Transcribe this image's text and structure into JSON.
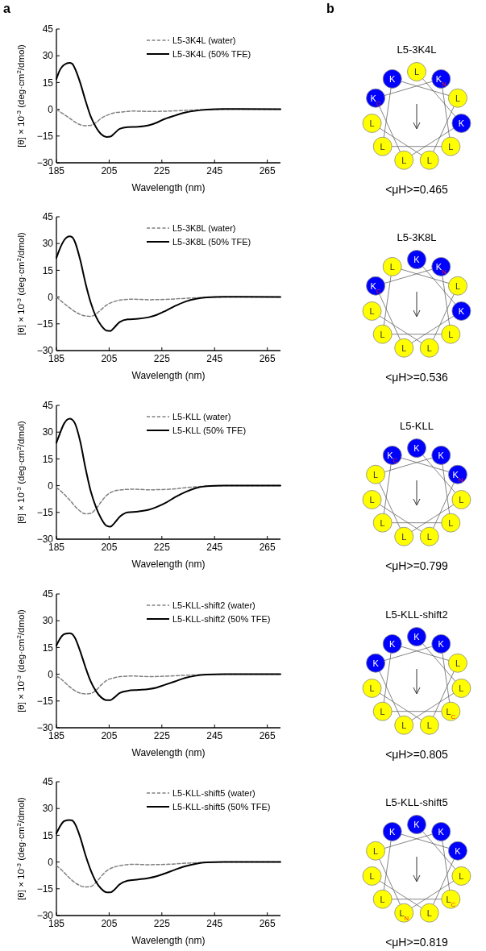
{
  "chart_data": [
    {
      "type": "line",
      "xlabel": "Wavelength (nm)",
      "ylabel": "[θ] × 10$^{-3}$ (deg·cm$^{2}$/dmol)",
      "xlim": [
        185,
        270
      ],
      "xticks": [
        185,
        205,
        225,
        245,
        265
      ],
      "ylim": [
        -30,
        45
      ],
      "yticks": [
        -30,
        -15,
        0,
        15,
        30,
        45
      ],
      "legend": "top right",
      "grid": false,
      "annotations": [
        "a"
      ],
      "series": [
        {
          "name": "L5-3K4L (water)",
          "color": "#808080",
          "line_style": "dashed",
          "x": [
            185,
            187,
            190,
            193,
            196,
            198,
            200,
            202,
            204,
            207,
            210,
            214,
            220,
            228,
            235,
            242,
            250,
            270
          ],
          "values": [
            0,
            -2,
            -5,
            -8,
            -9.2,
            -9,
            -7.5,
            -5,
            -3.5,
            -2,
            -1.5,
            -1,
            -1.2,
            -1,
            -0.5,
            -0.2,
            0,
            0
          ]
        },
        {
          "name": "L5-3K4L (50% TFE)",
          "color": "#000000",
          "line_style": "solid",
          "x": [
            185,
            186,
            188,
            190,
            191,
            192,
            194,
            196,
            198,
            200,
            202,
            204,
            205.5,
            207,
            209,
            212,
            216,
            220,
            223,
            226,
            230,
            234,
            238,
            242,
            248,
            255,
            270
          ],
          "values": [
            17,
            21,
            25,
            26,
            25.5,
            23,
            15,
            5,
            -4,
            -10,
            -14,
            -15.5,
            -15.3,
            -13.5,
            -11,
            -10,
            -9.8,
            -9,
            -7.5,
            -5.5,
            -3.5,
            -1.8,
            -0.8,
            -0.2,
            0.2,
            0.2,
            0
          ]
        }
      ]
    },
    {
      "type": "line",
      "xlabel": "Wavelength (nm)",
      "ylabel": "[θ] × 10$^{-3}$ (deg·cm$^{2}$/dmol)",
      "xlim": [
        185,
        270
      ],
      "xticks": [
        185,
        205,
        225,
        245,
        265
      ],
      "ylim": [
        -30,
        45
      ],
      "yticks": [
        -30,
        -15,
        0,
        15,
        30,
        45
      ],
      "legend": "top right",
      "grid": false,
      "series": [
        {
          "name": "L5-3K8L (water)",
          "color": "#808080",
          "line_style": "dashed",
          "x": [
            185,
            187,
            190,
            193,
            196,
            198,
            200,
            202,
            204,
            207,
            210,
            214,
            220,
            228,
            235,
            242,
            250,
            270
          ],
          "values": [
            0,
            -2.5,
            -6,
            -9,
            -10.6,
            -10.8,
            -9.5,
            -7,
            -4.5,
            -2.5,
            -1.5,
            -1.2,
            -1.5,
            -1.2,
            -0.6,
            -0.2,
            0,
            0
          ]
        },
        {
          "name": "L5-3K8L (50% TFE)",
          "color": "#000000",
          "line_style": "solid",
          "x": [
            185,
            186,
            188,
            190,
            191,
            192,
            194,
            196,
            198,
            200,
            202,
            204,
            205.5,
            207,
            209,
            212,
            216,
            220,
            223,
            226,
            230,
            234,
            238,
            242,
            248,
            255,
            270
          ],
          "values": [
            22,
            26,
            32,
            34,
            33.5,
            31,
            21,
            8,
            -3,
            -11,
            -16,
            -18.8,
            -19,
            -17,
            -14,
            -12.5,
            -12.2,
            -11.3,
            -10,
            -8,
            -5,
            -2.5,
            -1,
            -0.2,
            0.2,
            0.2,
            0
          ]
        }
      ]
    },
    {
      "type": "line",
      "xlabel": "Wavelength (nm)",
      "ylabel": "[θ] × 10$^{-3}$ (deg·cm$^{2}$/dmol)",
      "xlim": [
        185,
        270
      ],
      "xticks": [
        185,
        205,
        225,
        245,
        265
      ],
      "ylim": [
        -30,
        45
      ],
      "yticks": [
        -30,
        -15,
        0,
        15,
        30,
        45
      ],
      "legend": "top right",
      "grid": false,
      "series": [
        {
          "name": "L5-KLL (water)",
          "color": "#808080",
          "line_style": "dashed",
          "x": [
            185,
            187,
            190,
            193,
            196,
            198,
            200,
            202,
            204,
            207,
            210,
            214,
            220,
            228,
            235,
            242,
            250,
            270
          ],
          "values": [
            -1,
            -3.5,
            -8,
            -13,
            -15.8,
            -15.5,
            -13,
            -9,
            -5.5,
            -3,
            -2.3,
            -2,
            -2.3,
            -2,
            -1,
            -0.3,
            0,
            0
          ]
        },
        {
          "name": "L5-KLL (50% TFE)",
          "color": "#000000",
          "line_style": "solid",
          "x": [
            185,
            186,
            188,
            190,
            191,
            192,
            194,
            196,
            198,
            200,
            202,
            204,
            205.5,
            207,
            209,
            212,
            216,
            220,
            223,
            226,
            230,
            234,
            238,
            242,
            248,
            255,
            270
          ],
          "values": [
            24,
            28,
            35,
            37.5,
            37,
            35,
            25,
            10,
            -3,
            -12,
            -18.5,
            -22.5,
            -23,
            -21,
            -17.5,
            -15,
            -14.5,
            -13.5,
            -12,
            -10,
            -6.5,
            -3.5,
            -1.3,
            -0.3,
            0.1,
            0.1,
            0
          ]
        }
      ]
    },
    {
      "type": "line",
      "xlabel": "Wavelength (nm)",
      "ylabel": "[θ] × 10$^{-3}$ (deg·cm$^{2}$/dmol)",
      "xlim": [
        185,
        270
      ],
      "xticks": [
        185,
        205,
        225,
        245,
        265
      ],
      "ylim": [
        -30,
        45
      ],
      "yticks": [
        -30,
        -15,
        0,
        15,
        30,
        45
      ],
      "legend": "top right",
      "grid": false,
      "series": [
        {
          "name": "L5-KLL-shift2 (water)",
          "color": "#808080",
          "line_style": "dashed",
          "x": [
            185,
            187,
            190,
            193,
            196,
            198,
            200,
            202,
            204,
            207,
            210,
            214,
            220,
            228,
            235,
            242,
            250,
            270
          ],
          "values": [
            -1,
            -3,
            -7,
            -10,
            -11,
            -10.8,
            -9,
            -6,
            -3.5,
            -2,
            -1.2,
            -1,
            -1.3,
            -1,
            -0.5,
            -0.2,
            0,
            0
          ]
        },
        {
          "name": "L5-KLL-shift2 (50% TFE)",
          "color": "#000000",
          "line_style": "solid",
          "x": [
            185,
            186,
            188,
            190,
            191,
            192,
            194,
            196,
            198,
            200,
            202,
            204,
            205.5,
            207,
            209,
            212,
            216,
            220,
            223,
            226,
            230,
            234,
            238,
            242,
            248,
            255,
            270
          ],
          "values": [
            16,
            19,
            22.5,
            23,
            22.5,
            20.5,
            13,
            4,
            -4,
            -9.5,
            -13,
            -14.5,
            -14.5,
            -13,
            -10.5,
            -9.3,
            -8.8,
            -8.3,
            -7.5,
            -6,
            -4,
            -2,
            -0.8,
            -0.2,
            0.1,
            0.1,
            0
          ]
        }
      ]
    },
    {
      "type": "line",
      "xlabel": "Wavelength (nm)",
      "ylabel": "[θ] × 10$^{-3}$ (deg·cm$^{2}$/dmol)",
      "xlim": [
        185,
        270
      ],
      "xticks": [
        185,
        205,
        225,
        245,
        265
      ],
      "ylim": [
        -30,
        45
      ],
      "yticks": [
        -30,
        -15,
        0,
        15,
        30,
        45
      ],
      "legend": "top right",
      "grid": false,
      "series": [
        {
          "name": "L5-KLL-shift5 (water)",
          "color": "#808080",
          "line_style": "dashed",
          "x": [
            185,
            187,
            190,
            193,
            196,
            198,
            200,
            202,
            204,
            207,
            210,
            214,
            220,
            228,
            235,
            242,
            250,
            270
          ],
          "values": [
            -2,
            -4.5,
            -9,
            -12.5,
            -14,
            -13.7,
            -11.5,
            -8,
            -5,
            -2.8,
            -1.8,
            -1.3,
            -1.5,
            -1.2,
            -0.6,
            -0.2,
            0,
            0
          ]
        },
        {
          "name": "L5-KLL-shift5 (50% TFE)",
          "color": "#000000",
          "line_style": "solid",
          "x": [
            185,
            186,
            188,
            190,
            191,
            192,
            194,
            196,
            198,
            200,
            202,
            204,
            205.5,
            207,
            209,
            212,
            216,
            220,
            223,
            226,
            230,
            234,
            238,
            242,
            248,
            255,
            270
          ],
          "values": [
            16,
            19,
            23,
            23.5,
            23.3,
            21.5,
            14,
            4,
            -4.5,
            -11,
            -15,
            -17,
            -17,
            -15.5,
            -12.5,
            -10.5,
            -9.8,
            -9,
            -8,
            -6.5,
            -4.3,
            -2.3,
            -1,
            -0.2,
            0.1,
            0.1,
            0
          ]
        }
      ]
    },
    {
      "type": "other",
      "title": "L5-3K4L",
      "annotations": [
        "b",
        "<μH>=0.465"
      ],
      "categories": [
        "L",
        "K$_{N}$",
        "L",
        "K",
        "L",
        "L",
        "L",
        "L",
        "L",
        "K$_{C}$",
        "K"
      ],
      "colors": [
        "#ffff00",
        "#0000ff",
        "#ffff00",
        "#0000ff",
        "#ffff00",
        "#ffff00",
        "#ffff00",
        "#ffff00",
        "#ffff00",
        "#0000ff",
        "#0000ff"
      ]
    },
    {
      "type": "other",
      "title": "L5-3K8L",
      "annotations": [
        "<μH>=0.536"
      ],
      "categories": [
        "K",
        "K$_{N}$",
        "L",
        "K",
        "L",
        "L",
        "L",
        "L",
        "L",
        "K$_{C}$",
        "L"
      ],
      "colors": [
        "#0000ff",
        "#0000ff",
        "#ffff00",
        "#0000ff",
        "#ffff00",
        "#ffff00",
        "#ffff00",
        "#ffff00",
        "#ffff00",
        "#0000ff",
        "#ffff00"
      ]
    },
    {
      "type": "other",
      "title": "L5-KLL",
      "annotations": [
        "<μH>=0.799"
      ],
      "categories": [
        "K",
        "K",
        "K$_{N}$",
        "L",
        "L",
        "L",
        "L",
        "L",
        "L",
        "L",
        "K$_{C}$"
      ],
      "colors": [
        "#0000ff",
        "#0000ff",
        "#0000ff",
        "#ffff00",
        "#ffff00",
        "#ffff00",
        "#ffff00",
        "#ffff00",
        "#ffff00",
        "#ffff00",
        "#0000ff"
      ]
    },
    {
      "type": "other",
      "title": "L5-KLL-shift2",
      "annotations": [
        "<μH>=0.805"
      ],
      "categories": [
        "K",
        "K",
        "L",
        "L",
        "L$_{C}$",
        "L",
        "L",
        "L",
        "L",
        "K",
        "K"
      ],
      "colors": [
        "#0000ff",
        "#0000ff",
        "#ffff00",
        "#ffff00",
        "#ffff00",
        "#ffff00",
        "#ffff00",
        "#ffff00",
        "#ffff00",
        "#0000ff",
        "#0000ff"
      ]
    },
    {
      "type": "other",
      "title": "L5-KLL-shift5",
      "annotations": [
        "<μH>=0.819"
      ],
      "categories": [
        "K",
        "K",
        "K",
        "L",
        "L$_{C}$",
        "L",
        "L$_{N}$",
        "L",
        "L",
        "L",
        "K"
      ],
      "colors": [
        "#0000ff",
        "#0000ff",
        "#0000ff",
        "#ffff00",
        "#ffff00",
        "#ffff00",
        "#ffff00",
        "#ffff00",
        "#ffff00",
        "#ffff00",
        "#0000ff"
      ]
    }
  ]
}
